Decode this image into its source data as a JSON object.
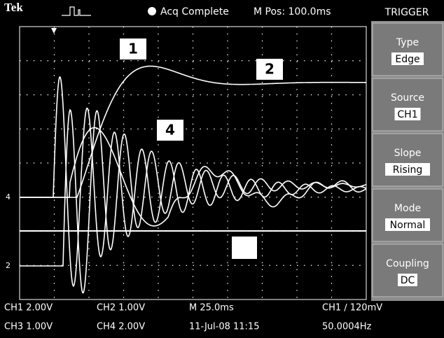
{
  "header": {
    "brand": "Tek",
    "status": "Acq Complete",
    "position": "M Pos: 100.0ms"
  },
  "menu": {
    "title": "TRIGGER",
    "items": [
      {
        "label": "Type",
        "value": "Edge"
      },
      {
        "label": "Source",
        "value": "CH1"
      },
      {
        "label": "Slope",
        "value": "Rising"
      },
      {
        "label": "Mode",
        "value": "Normal"
      },
      {
        "label": "Coupling",
        "value": "DC"
      }
    ]
  },
  "traces": {
    "labels": [
      "1",
      "2",
      "4"
    ],
    "markers": [
      "4",
      "2"
    ]
  },
  "footer": {
    "rows": [
      [
        "CH1  2.00V",
        "CH2  1.00V",
        "M 25.0ms",
        "CH1 ∕ 120mV"
      ],
      [
        "CH3  1.00V",
        "CH4  2.00V",
        "11-Jul-08 11:15",
        "50.0004Hz"
      ]
    ]
  }
}
